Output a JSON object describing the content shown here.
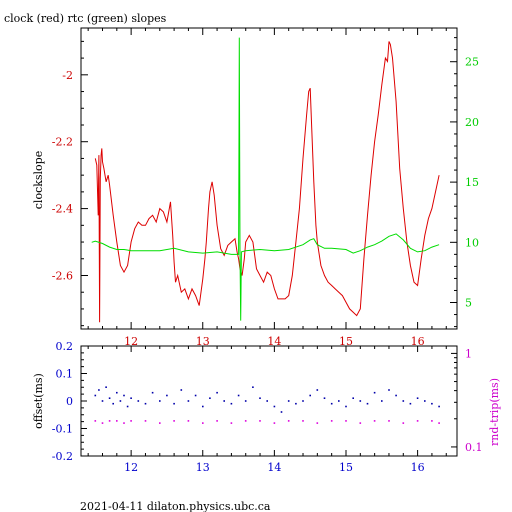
{
  "title": "clock (red) rtc (green) slopes",
  "footer": "2021-04-11  dilaton.physics.ubc.ca",
  "colors": {
    "clock": "#dd0000",
    "rtc": "#00dd00",
    "offset": "#0000aa",
    "rndtrip": "#dd00dd",
    "tick_red": "#cc0000",
    "tick_green": "#00cc00",
    "tick_blue": "#0000cc",
    "tick_magenta": "#cc00cc",
    "axis": "#000000"
  },
  "chart_data": [
    {
      "type": "line",
      "name": "slopes",
      "xlim": [
        11.3,
        16.55
      ],
      "x_ticks": [
        "12",
        "13",
        "14",
        "15",
        "16"
      ],
      "ylabel": "clockslope",
      "ylim": [
        -2.76,
        -1.86
      ],
      "y_ticks": [
        "-2",
        "-2.2",
        "-2.4",
        "-2.6"
      ],
      "y2lim": [
        2.8,
        27.8
      ],
      "y2_ticks": [
        "5",
        "10",
        "15",
        "20",
        "25"
      ],
      "series": [
        {
          "name": "clock",
          "axis": "left",
          "x": [
            11.5,
            11.52,
            11.54,
            11.55,
            11.56,
            11.57,
            11.58,
            11.59,
            11.6,
            11.62,
            11.65,
            11.68,
            11.7,
            11.75,
            11.8,
            11.85,
            11.9,
            11.95,
            12.0,
            12.05,
            12.1,
            12.15,
            12.2,
            12.25,
            12.3,
            12.35,
            12.4,
            12.45,
            12.5,
            12.55,
            12.58,
            12.6,
            12.62,
            12.65,
            12.7,
            12.75,
            12.8,
            12.85,
            12.9,
            12.95,
            13.0,
            13.03,
            13.05,
            13.08,
            13.1,
            13.13,
            13.16,
            13.2,
            13.25,
            13.3,
            13.35,
            13.4,
            13.45,
            13.48,
            13.5,
            13.52,
            13.55,
            13.58,
            13.6,
            13.65,
            13.7,
            13.75,
            13.8,
            13.85,
            13.9,
            13.95,
            14.0,
            14.05,
            14.1,
            14.15,
            14.2,
            14.25,
            14.3,
            14.35,
            14.4,
            14.45,
            14.48,
            14.5,
            14.52,
            14.55,
            14.58,
            14.6,
            14.65,
            14.7,
            14.75,
            14.8,
            14.85,
            14.9,
            14.95,
            15.0,
            15.05,
            15.1,
            15.15,
            15.2,
            15.25,
            15.3,
            15.35,
            15.4,
            15.45,
            15.5,
            15.55,
            15.58,
            15.6,
            15.62,
            15.65,
            15.7,
            15.75,
            15.8,
            15.85,
            15.9,
            15.95,
            16.0,
            16.05,
            16.1,
            16.15,
            16.2,
            16.25,
            16.3
          ],
          "y": [
            -2.25,
            -2.27,
            -2.42,
            -2.24,
            -2.74,
            -2.31,
            -2.24,
            -2.22,
            -2.26,
            -2.28,
            -2.32,
            -2.3,
            -2.33,
            -2.42,
            -2.5,
            -2.57,
            -2.59,
            -2.57,
            -2.5,
            -2.46,
            -2.44,
            -2.45,
            -2.45,
            -2.43,
            -2.42,
            -2.44,
            -2.4,
            -2.41,
            -2.44,
            -2.38,
            -2.48,
            -2.56,
            -2.62,
            -2.6,
            -2.65,
            -2.64,
            -2.67,
            -2.64,
            -2.66,
            -2.69,
            -2.61,
            -2.55,
            -2.5,
            -2.4,
            -2.35,
            -2.32,
            -2.36,
            -2.45,
            -2.52,
            -2.54,
            -2.51,
            -2.5,
            -2.49,
            -2.53,
            -2.55,
            -2.58,
            -2.6,
            -2.55,
            -2.5,
            -2.48,
            -2.5,
            -2.58,
            -2.6,
            -2.62,
            -2.59,
            -2.6,
            -2.64,
            -2.67,
            -2.67,
            -2.67,
            -2.66,
            -2.6,
            -2.5,
            -2.4,
            -2.25,
            -2.12,
            -2.05,
            -2.04,
            -2.15,
            -2.32,
            -2.45,
            -2.5,
            -2.57,
            -2.6,
            -2.62,
            -2.63,
            -2.64,
            -2.65,
            -2.66,
            -2.68,
            -2.7,
            -2.71,
            -2.72,
            -2.7,
            -2.55,
            -2.42,
            -2.3,
            -2.2,
            -2.12,
            -2.03,
            -1.95,
            -1.96,
            -1.9,
            -1.91,
            -1.95,
            -2.08,
            -2.28,
            -2.4,
            -2.5,
            -2.57,
            -2.62,
            -2.63,
            -2.55,
            -2.48,
            -2.43,
            -2.4,
            -2.35,
            -2.3
          ]
        },
        {
          "name": "rtc",
          "axis": "right",
          "x": [
            11.45,
            11.5,
            11.6,
            11.7,
            11.8,
            11.9,
            12.0,
            12.2,
            12.4,
            12.6,
            12.8,
            13.0,
            13.2,
            13.4,
            13.5,
            13.51,
            13.52,
            13.53,
            13.54,
            13.6,
            13.8,
            14.0,
            14.2,
            14.4,
            14.5,
            14.55,
            14.6,
            14.7,
            14.8,
            15.0,
            15.1,
            15.2,
            15.3,
            15.4,
            15.5,
            15.6,
            15.7,
            15.8,
            15.9,
            16.0,
            16.1,
            16.2,
            16.3
          ],
          "y": [
            10.0,
            10.1,
            9.9,
            9.6,
            9.4,
            9.4,
            9.3,
            9.3,
            9.3,
            9.5,
            9.2,
            9.1,
            9.2,
            9.0,
            9.0,
            27.0,
            9.1,
            3.5,
            9.2,
            9.3,
            9.4,
            9.3,
            9.4,
            9.8,
            10.2,
            10.3,
            9.8,
            9.5,
            9.5,
            9.4,
            9.1,
            9.3,
            9.6,
            9.8,
            10.1,
            10.5,
            10.7,
            10.2,
            9.5,
            9.2,
            9.3,
            9.6,
            9.8
          ]
        }
      ]
    },
    {
      "type": "scatter",
      "name": "offset-rndtrip",
      "xlim": [
        11.3,
        16.55
      ],
      "x_ticks": [
        "12",
        "13",
        "14",
        "15",
        "16"
      ],
      "ylabel": "offset(ms)",
      "ylim": [
        -0.2,
        0.2
      ],
      "y_ticks": [
        "0.2",
        "0.1",
        "0",
        "-0.1",
        "-0.2"
      ],
      "y2label": "rnd-trip(ms)",
      "y2lim": [
        0.08,
        1.2
      ],
      "y2_scale": "log",
      "y2_ticks": [
        "1",
        "0.1"
      ],
      "series": [
        {
          "name": "offset",
          "axis": "left",
          "x": [
            11.5,
            11.55,
            11.6,
            11.65,
            11.7,
            11.75,
            11.8,
            11.85,
            11.9,
            11.95,
            12.0,
            12.1,
            12.2,
            12.3,
            12.4,
            12.5,
            12.6,
            12.7,
            12.8,
            12.9,
            13.0,
            13.1,
            13.2,
            13.3,
            13.4,
            13.5,
            13.6,
            13.7,
            13.8,
            13.9,
            14.0,
            14.1,
            14.2,
            14.3,
            14.4,
            14.5,
            14.6,
            14.7,
            14.8,
            14.9,
            15.0,
            15.1,
            15.2,
            15.3,
            15.4,
            15.5,
            15.6,
            15.7,
            15.8,
            15.9,
            16.0,
            16.1,
            16.2,
            16.3
          ],
          "y": [
            0.02,
            0.04,
            0.0,
            0.05,
            0.01,
            -0.01,
            0.03,
            0.0,
            0.02,
            -0.02,
            0.01,
            0.0,
            -0.01,
            0.03,
            0.0,
            0.02,
            -0.01,
            0.04,
            0.0,
            0.02,
            -0.02,
            0.01,
            0.03,
            0.0,
            -0.01,
            0.02,
            0.0,
            0.05,
            0.01,
            0.0,
            -0.02,
            -0.04,
            0.0,
            -0.01,
            0.0,
            0.02,
            0.04,
            0.01,
            -0.01,
            0.0,
            -0.02,
            0.01,
            0.0,
            -0.01,
            0.03,
            0.0,
            0.04,
            0.02,
            0.0,
            -0.01,
            0.01,
            0.0,
            -0.01,
            -0.02
          ]
        },
        {
          "name": "rnd-trip",
          "axis": "right",
          "x": [
            11.5,
            11.6,
            11.7,
            11.8,
            11.9,
            12.0,
            12.2,
            12.4,
            12.6,
            12.8,
            13.0,
            13.2,
            13.4,
            13.6,
            13.8,
            14.0,
            14.2,
            14.4,
            14.6,
            14.8,
            15.0,
            15.2,
            15.4,
            15.6,
            15.8,
            16.0,
            16.2,
            16.3
          ],
          "y": [
            0.19,
            0.18,
            0.19,
            0.19,
            0.18,
            0.19,
            0.19,
            0.18,
            0.19,
            0.19,
            0.18,
            0.19,
            0.18,
            0.19,
            0.19,
            0.18,
            0.19,
            0.19,
            0.18,
            0.19,
            0.19,
            0.18,
            0.19,
            0.19,
            0.18,
            0.19,
            0.19,
            0.18
          ]
        }
      ]
    }
  ]
}
